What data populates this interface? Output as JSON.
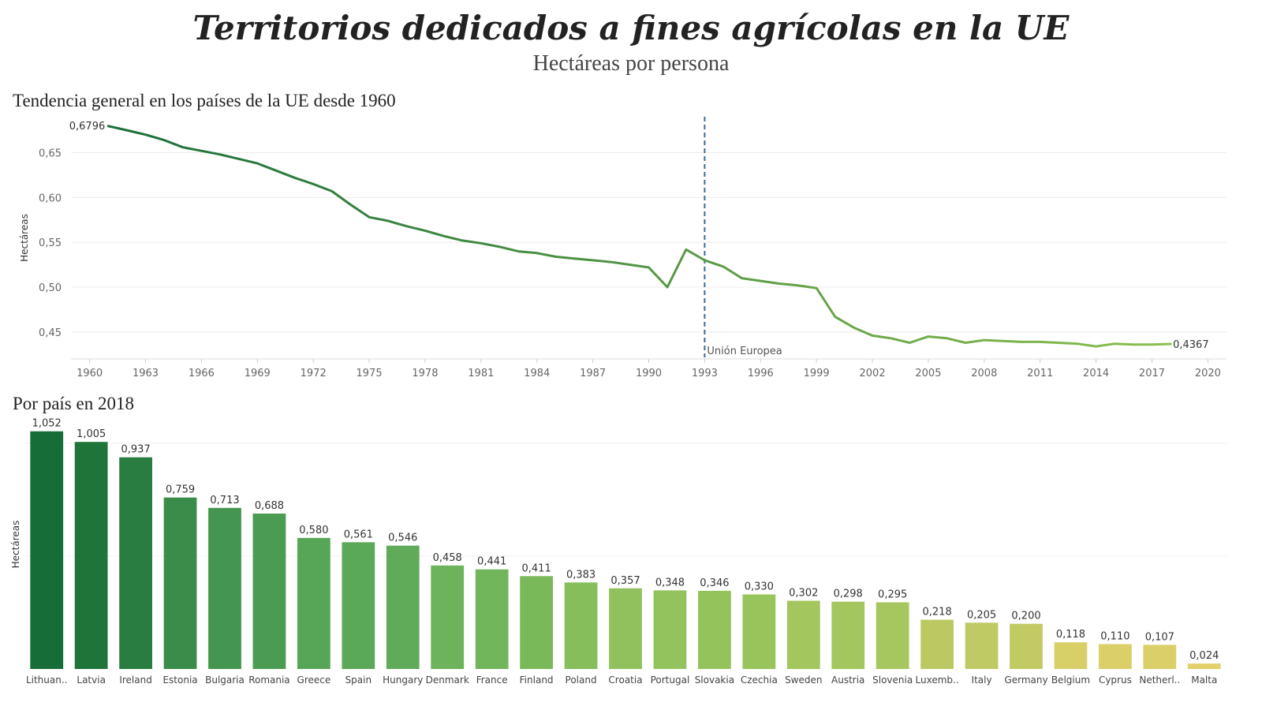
{
  "header": {
    "title": "Territorios dedicados a fines agrícolas en la UE",
    "subtitle": "Hectáreas por persona"
  },
  "chart_data": [
    {
      "type": "line",
      "title": "Tendencia general en los países de la UE desde 1960",
      "ylabel": "Hectáreas",
      "xlabel": "",
      "xlim": [
        1959,
        2021
      ],
      "ylim": [
        0.42,
        0.69
      ],
      "x_ticks": [
        "1960",
        "1963",
        "1966",
        "1969",
        "1972",
        "1975",
        "1978",
        "1981",
        "1984",
        "1987",
        "1990",
        "1993",
        "1996",
        "1999",
        "2002",
        "2005",
        "2008",
        "2011",
        "2014",
        "2017",
        "2020"
      ],
      "y_ticks": [
        "0,65",
        "0,60",
        "0,55",
        "0,50",
        "0,45"
      ],
      "y_tick_values": [
        0.65,
        0.6,
        0.55,
        0.5,
        0.45
      ],
      "grid": "horizontal",
      "color_start": "#1b6e3a",
      "color_end": "#8cbf4f",
      "series": [
        {
          "x": [
            1961,
            1962,
            1963,
            1964,
            1965,
            1966,
            1967,
            1968,
            1969,
            1970,
            1971,
            1972,
            1973,
            1974,
            1975,
            1976,
            1977,
            1978,
            1979,
            1980,
            1981,
            1982,
            1983,
            1984,
            1985,
            1986,
            1987,
            1988,
            1989,
            1990,
            1991,
            1992,
            1993,
            1994,
            1995,
            1996,
            1997,
            1998,
            1999,
            2000,
            2001,
            2002,
            2003,
            2004,
            2005,
            2006,
            2007,
            2008,
            2009,
            2010,
            2011,
            2012,
            2013,
            2014,
            2015,
            2016,
            2017,
            2018
          ],
          "y": [
            0.6796,
            0.675,
            0.67,
            0.664,
            0.656,
            0.652,
            0.648,
            0.643,
            0.638,
            0.63,
            0.622,
            0.615,
            0.607,
            0.592,
            0.578,
            0.574,
            0.568,
            0.563,
            0.557,
            0.552,
            0.549,
            0.545,
            0.54,
            0.538,
            0.534,
            0.532,
            0.53,
            0.528,
            0.525,
            0.522,
            0.5,
            0.542,
            0.53,
            0.523,
            0.51,
            0.507,
            0.504,
            0.502,
            0.499,
            0.467,
            0.455,
            0.446,
            0.443,
            0.438,
            0.445,
            0.443,
            0.438,
            0.441,
            0.44,
            0.439,
            0.439,
            0.438,
            0.437,
            0.434,
            0.437,
            0.436,
            0.436,
            0.4367
          ]
        }
      ],
      "labels": {
        "first": "0,6796",
        "last": "0,4367"
      },
      "annotation": {
        "x": 1993,
        "label": "Unión Europea",
        "color": "#3a6a9a"
      }
    },
    {
      "type": "bar",
      "title": "Por país en 2018",
      "ylabel": "Hectáreas",
      "ylim": [
        0,
        1.1
      ],
      "grid": "horizontal",
      "categories": [
        "Lithuan..",
        "Latvia",
        "Ireland",
        "Estonia",
        "Bulgaria",
        "Romania",
        "Greece",
        "Spain",
        "Hungary",
        "Denmark",
        "France",
        "Finland",
        "Poland",
        "Croatia",
        "Portugal",
        "Slovakia",
        "Czechia",
        "Sweden",
        "Austria",
        "Slovenia",
        "Luxemb..",
        "Italy",
        "Germany",
        "Belgium",
        "Cyprus",
        "Netherl..",
        "Malta"
      ],
      "values": [
        1.052,
        1.005,
        0.937,
        0.759,
        0.713,
        0.688,
        0.58,
        0.561,
        0.546,
        0.458,
        0.441,
        0.411,
        0.383,
        0.357,
        0.348,
        0.346,
        0.33,
        0.302,
        0.298,
        0.295,
        0.218,
        0.205,
        0.2,
        0.118,
        0.11,
        0.107,
        0.024
      ],
      "value_labels": [
        "1,052",
        "1,005",
        "0,937",
        "0,759",
        "0,713",
        "0,688",
        "0,580",
        "0,561",
        "0,546",
        "0,458",
        "0,441",
        "0,411",
        "0,383",
        "0,357",
        "0,348",
        "0,346",
        "0,330",
        "0,302",
        "0,298",
        "0,295",
        "0,218",
        "0,205",
        "0,200",
        "0,118",
        "0,110",
        "0,107",
        "0,024"
      ],
      "colors": [
        "#176d37",
        "#1e7439",
        "#2a7d40",
        "#3b8c4a",
        "#449550",
        "#4c9b52",
        "#57a557",
        "#5ba859",
        "#60ab5a",
        "#6db35b",
        "#72b65b",
        "#7ab95a",
        "#86be5b",
        "#90c15c",
        "#93c35c",
        "#94c35c",
        "#98c45c",
        "#a3c65e",
        "#a4c65e",
        "#a6c75f",
        "#bcc963",
        "#c0ca64",
        "#c2ca64",
        "#d8cf68",
        "#dacf69",
        "#dbcf69",
        "#e3d06b"
      ]
    }
  ]
}
